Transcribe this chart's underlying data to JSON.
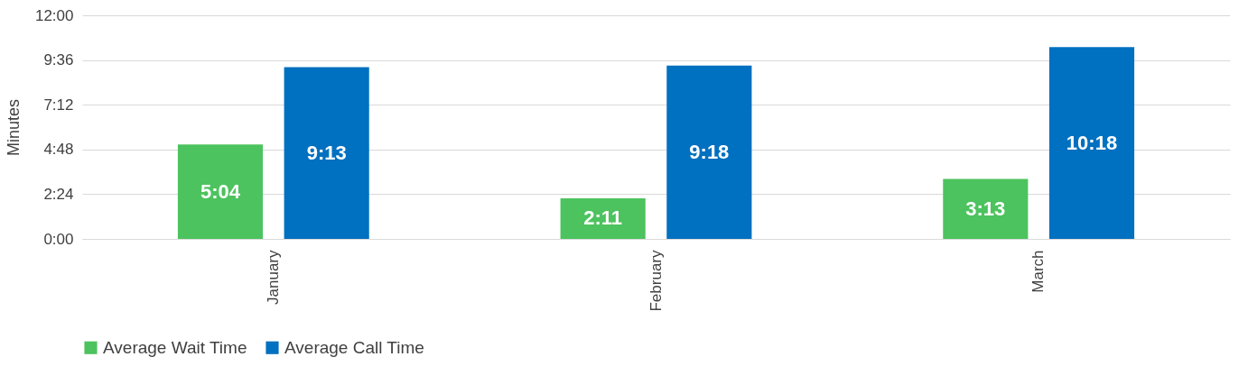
{
  "chart_data": {
    "type": "bar",
    "ylabel": "Minutes",
    "categories": [
      "January",
      "February",
      "March"
    ],
    "series": [
      {
        "name": "Average Wait Time",
        "color": "#4cc35e",
        "values": [
          5.0667,
          2.1833,
          3.2167
        ],
        "value_labels": [
          "5:04",
          "2:11",
          "3:13"
        ]
      },
      {
        "name": "Average Call Time",
        "color": "#0070c0",
        "values": [
          9.2167,
          9.3,
          10.3
        ],
        "value_labels": [
          "9:13",
          "9:18",
          "10:18"
        ]
      }
    ],
    "ylim": [
      0,
      12
    ],
    "yticks": [
      {
        "value": 0,
        "label": "0:00"
      },
      {
        "value": 2.4,
        "label": "2:24"
      },
      {
        "value": 4.8,
        "label": "4:48"
      },
      {
        "value": 7.2,
        "label": "7:12"
      },
      {
        "value": 9.6,
        "label": "9:36"
      },
      {
        "value": 12,
        "label": "12:00"
      }
    ],
    "grid": "y",
    "legend": "bottom"
  }
}
